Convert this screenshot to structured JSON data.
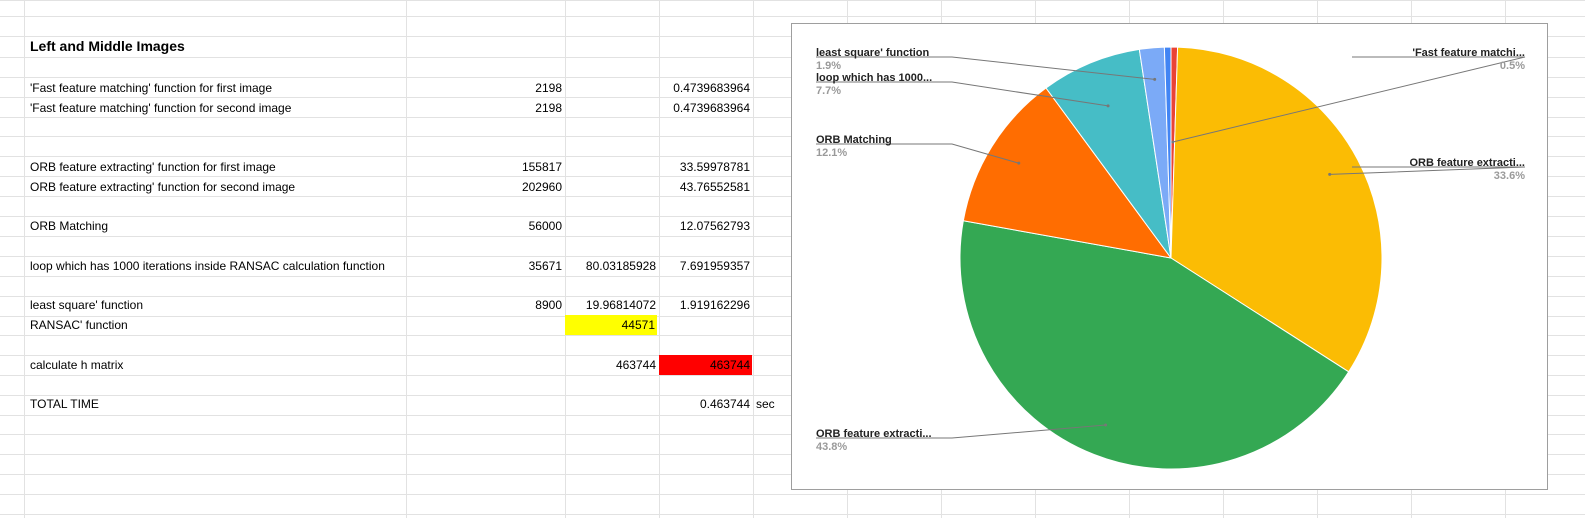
{
  "sheet": {
    "title": "Left and Middle Images",
    "rows": [
      {
        "label": "'Fast feature matching' function for first image",
        "b": "2198",
        "c": "",
        "d": "0.4739683964",
        "e": ""
      },
      {
        "label": "'Fast feature matching' function for second image",
        "b": "2198",
        "c": "",
        "d": "0.4739683964",
        "e": ""
      },
      {
        "label": "ORB feature extracting' function for first image",
        "b": "155817",
        "c": "",
        "d": "33.59978781",
        "e": ""
      },
      {
        "label": "ORB feature extracting' function for second image",
        "b": "202960",
        "c": "",
        "d": "43.76552581",
        "e": ""
      },
      {
        "label": "ORB Matching",
        "b": "56000",
        "c": "",
        "d": "12.07562793",
        "e": ""
      },
      {
        "label": "loop which has 1000 iterations inside RANSAC calculation function",
        "b": "35671",
        "c": "80.03185928",
        "d": "7.691959357",
        "e": ""
      },
      {
        "label": "least square' function",
        "b": "8900",
        "c": "19.96814072",
        "d": "1.919162296",
        "e": ""
      },
      {
        "label": "RANSAC' function",
        "b": "",
        "c": "44571",
        "d": "",
        "e": ""
      },
      {
        "label": "calculate h matrix",
        "b": "",
        "c": "463744",
        "d": "463744",
        "e": ""
      },
      {
        "label": "TOTAL TIME",
        "b": "",
        "c": "",
        "d": "0.463744",
        "e": "sec"
      }
    ]
  },
  "chart_data": {
    "type": "pie",
    "title": "",
    "slices": [
      {
        "label": "'Fast feature matchi...",
        "value": 0.5,
        "pct": "0.5%",
        "color": "#ea4335"
      },
      {
        "label": "ORB feature extracti...",
        "value": 33.6,
        "pct": "33.6%",
        "color": "#fbbc04"
      },
      {
        "label": "ORB feature extracti...",
        "value": 43.8,
        "pct": "43.8%",
        "color": "#34a853"
      },
      {
        "label": "ORB Matching",
        "value": 12.1,
        "pct": "12.1%",
        "color": "#ff6d01"
      },
      {
        "label": "loop which has 1000...",
        "value": 7.7,
        "pct": "7.7%",
        "color": "#46bdc6"
      },
      {
        "label": "least square' function",
        "value": 1.9,
        "pct": "1.9%",
        "color": "#7baaf7"
      },
      {
        "label": "",
        "value": 0.5,
        "pct": "",
        "color": "#4285f4"
      }
    ],
    "legend": "labels with leader lines"
  },
  "colors": {
    "gridline": "#e2e2e2",
    "highlight_yellow": "#ffff00",
    "highlight_red": "#ff0000"
  }
}
